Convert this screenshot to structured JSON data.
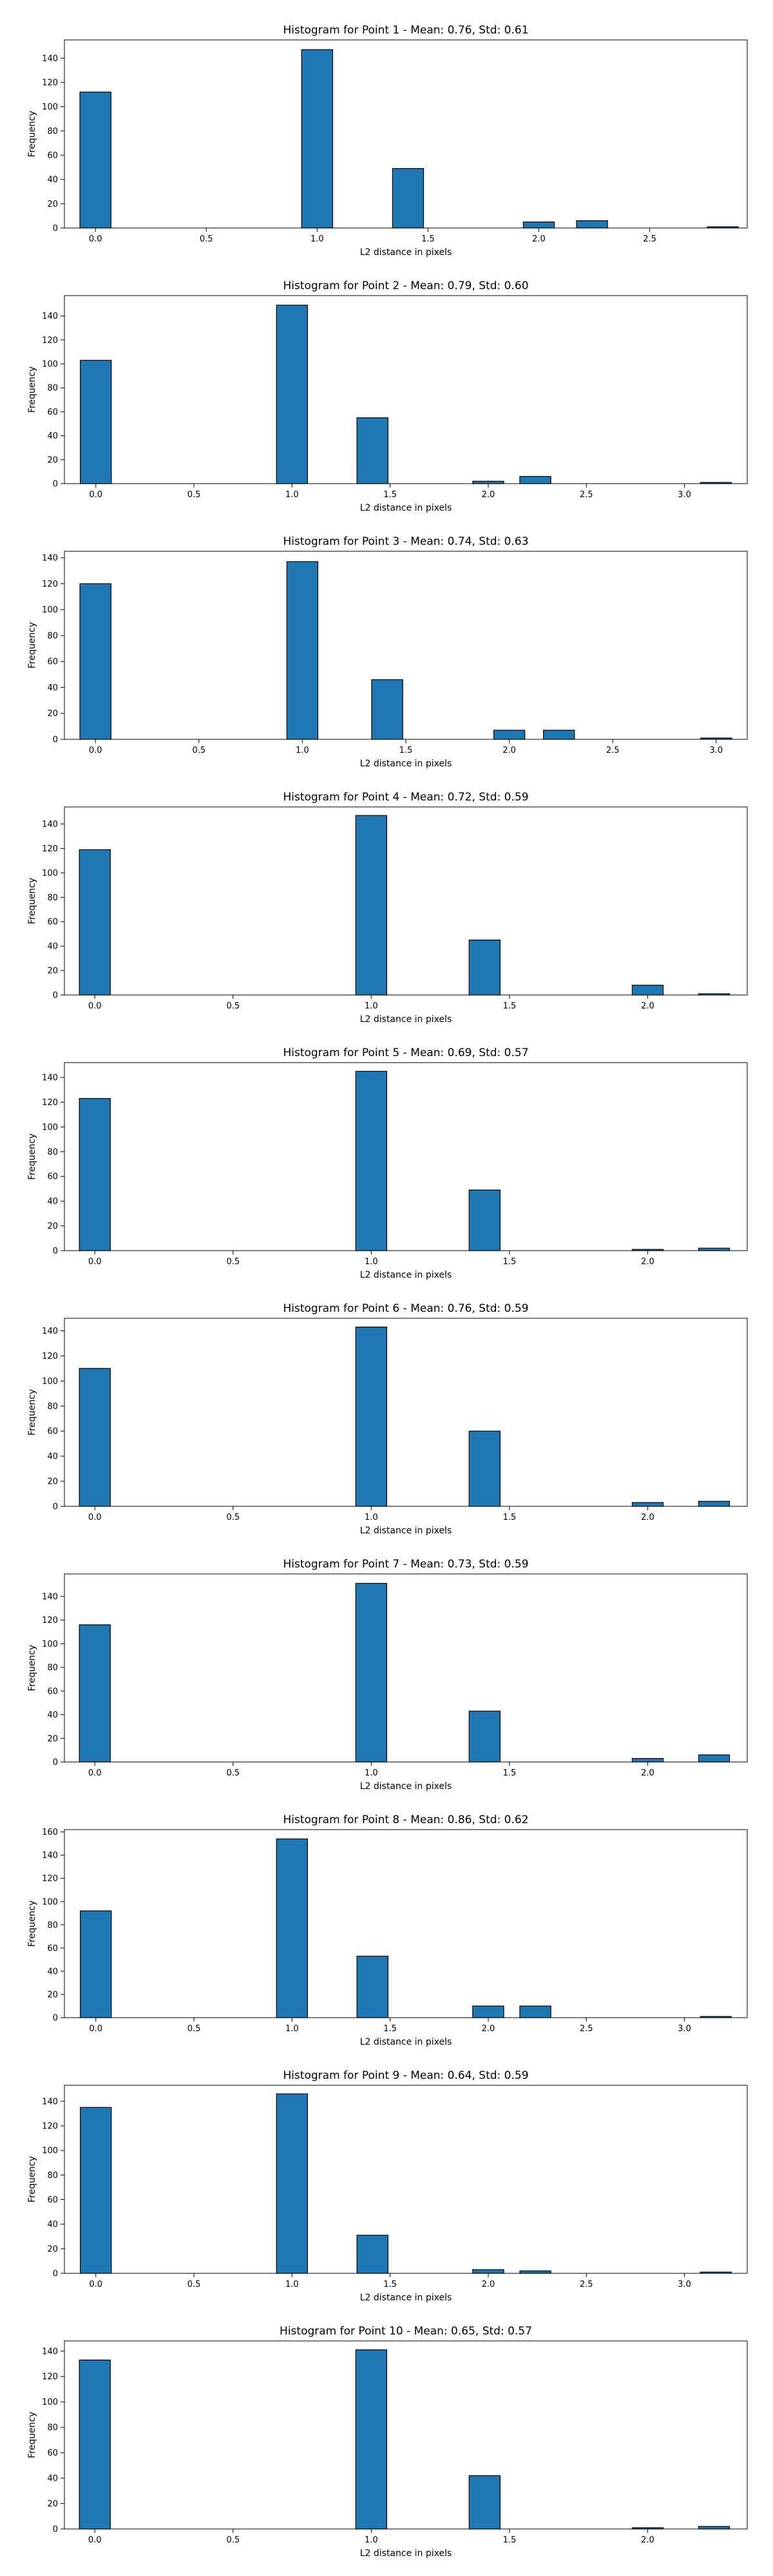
{
  "chart_data": [
    {
      "type": "bar",
      "title": "Histogram for Point 1 - Mean: 0.76, Std: 0.61",
      "xlabel": "L2 distance in pixels",
      "ylabel": "Frequency",
      "xlim": [
        -0.14,
        2.94
      ],
      "ylim": [
        0,
        155
      ],
      "xticks": [
        0.0,
        0.5,
        1.0,
        1.5,
        2.0,
        2.5
      ],
      "xtick_labels": [
        "0.0",
        "0.5",
        "1.0",
        "1.5",
        "2.0",
        "2.5"
      ],
      "yticks": [
        0,
        20,
        40,
        60,
        80,
        100,
        120,
        140
      ],
      "bin_width": 0.14,
      "bars": [
        {
          "x": 0.0,
          "value": 112
        },
        {
          "x": 1.0,
          "value": 147
        },
        {
          "x": 1.41,
          "value": 49
        },
        {
          "x": 2.0,
          "value": 5
        },
        {
          "x": 2.24,
          "value": 6
        },
        {
          "x": 2.83,
          "value": 1
        }
      ],
      "color": "#1f77b4",
      "grid": false
    },
    {
      "type": "bar",
      "title": "Histogram for Point 2 - Mean: 0.79, Std: 0.60",
      "xlabel": "L2 distance in pixels",
      "ylabel": "Frequency",
      "xlim": [
        -0.16,
        3.32
      ],
      "ylim": [
        0,
        157
      ],
      "xticks": [
        0.0,
        0.5,
        1.0,
        1.5,
        2.0,
        2.5,
        3.0
      ],
      "xtick_labels": [
        "0.0",
        "0.5",
        "1.0",
        "1.5",
        "2.0",
        "2.5",
        "3.0"
      ],
      "yticks": [
        0,
        20,
        40,
        60,
        80,
        100,
        120,
        140
      ],
      "bin_width": 0.158,
      "bars": [
        {
          "x": 0.0,
          "value": 103
        },
        {
          "x": 1.0,
          "value": 149
        },
        {
          "x": 1.41,
          "value": 55
        },
        {
          "x": 2.0,
          "value": 2
        },
        {
          "x": 2.24,
          "value": 6
        },
        {
          "x": 3.16,
          "value": 1
        }
      ],
      "color": "#1f77b4",
      "grid": false
    },
    {
      "type": "bar",
      "title": "Histogram for Point 3 - Mean: 0.74, Std: 0.63",
      "xlabel": "L2 distance in pixels",
      "ylabel": "Frequency",
      "xlim": [
        -0.15,
        3.15
      ],
      "ylim": [
        0,
        145
      ],
      "xticks": [
        0.0,
        0.5,
        1.0,
        1.5,
        2.0,
        2.5,
        3.0
      ],
      "xtick_labels": [
        "0.0",
        "0.5",
        "1.0",
        "1.5",
        "2.0",
        "2.5",
        "3.0"
      ],
      "yticks": [
        0,
        20,
        40,
        60,
        80,
        100,
        120,
        140
      ],
      "bin_width": 0.15,
      "bars": [
        {
          "x": 0.0,
          "value": 120
        },
        {
          "x": 1.0,
          "value": 137
        },
        {
          "x": 1.41,
          "value": 46
        },
        {
          "x": 2.0,
          "value": 7
        },
        {
          "x": 2.24,
          "value": 7
        },
        {
          "x": 3.0,
          "value": 1
        }
      ],
      "color": "#1f77b4",
      "grid": false
    },
    {
      "type": "bar",
      "title": "Histogram for Point 4 - Mean: 0.72, Std: 0.59",
      "xlabel": "L2 distance in pixels",
      "ylabel": "Frequency",
      "xlim": [
        -0.11,
        2.36
      ],
      "ylim": [
        0,
        154
      ],
      "xticks": [
        0.0,
        0.5,
        1.0,
        1.5,
        2.0
      ],
      "xtick_labels": [
        "0.0",
        "0.5",
        "1.0",
        "1.5",
        "2.0"
      ],
      "yticks": [
        0,
        20,
        40,
        60,
        80,
        100,
        120,
        140
      ],
      "bin_width": 0.112,
      "bars": [
        {
          "x": 0.0,
          "value": 119
        },
        {
          "x": 1.0,
          "value": 147
        },
        {
          "x": 1.41,
          "value": 45
        },
        {
          "x": 2.0,
          "value": 8
        },
        {
          "x": 2.24,
          "value": 1
        }
      ],
      "color": "#1f77b4",
      "grid": false
    },
    {
      "type": "bar",
      "title": "Histogram for Point 5 - Mean: 0.69, Std: 0.57",
      "xlabel": "L2 distance in pixels",
      "ylabel": "Frequency",
      "xlim": [
        -0.11,
        2.36
      ],
      "ylim": [
        0,
        152
      ],
      "xticks": [
        0.0,
        0.5,
        1.0,
        1.5,
        2.0
      ],
      "xtick_labels": [
        "0.0",
        "0.5",
        "1.0",
        "1.5",
        "2.0"
      ],
      "yticks": [
        0,
        20,
        40,
        60,
        80,
        100,
        120,
        140
      ],
      "bin_width": 0.112,
      "bars": [
        {
          "x": 0.0,
          "value": 123
        },
        {
          "x": 1.0,
          "value": 145
        },
        {
          "x": 1.41,
          "value": 49
        },
        {
          "x": 2.0,
          "value": 1
        },
        {
          "x": 2.24,
          "value": 2
        }
      ],
      "color": "#1f77b4",
      "grid": false
    },
    {
      "type": "bar",
      "title": "Histogram for Point 6 - Mean: 0.76, Std: 0.59",
      "xlabel": "L2 distance in pixels",
      "ylabel": "Frequency",
      "xlim": [
        -0.11,
        2.36
      ],
      "ylim": [
        0,
        150
      ],
      "xticks": [
        0.0,
        0.5,
        1.0,
        1.5,
        2.0
      ],
      "xtick_labels": [
        "0.0",
        "0.5",
        "1.0",
        "1.5",
        "2.0"
      ],
      "yticks": [
        0,
        20,
        40,
        60,
        80,
        100,
        120,
        140
      ],
      "bin_width": 0.112,
      "bars": [
        {
          "x": 0.0,
          "value": 110
        },
        {
          "x": 1.0,
          "value": 143
        },
        {
          "x": 1.41,
          "value": 60
        },
        {
          "x": 2.0,
          "value": 3
        },
        {
          "x": 2.24,
          "value": 4
        }
      ],
      "color": "#1f77b4",
      "grid": false
    },
    {
      "type": "bar",
      "title": "Histogram for Point 7 - Mean: 0.73, Std: 0.59",
      "xlabel": "L2 distance in pixels",
      "ylabel": "Frequency",
      "xlim": [
        -0.11,
        2.36
      ],
      "ylim": [
        0,
        159
      ],
      "xticks": [
        0.0,
        0.5,
        1.0,
        1.5,
        2.0
      ],
      "xtick_labels": [
        "0.0",
        "0.5",
        "1.0",
        "1.5",
        "2.0"
      ],
      "yticks": [
        0,
        20,
        40,
        60,
        80,
        100,
        120,
        140
      ],
      "bin_width": 0.112,
      "bars": [
        {
          "x": 0.0,
          "value": 116
        },
        {
          "x": 1.0,
          "value": 151
        },
        {
          "x": 1.41,
          "value": 43
        },
        {
          "x": 2.0,
          "value": 3
        },
        {
          "x": 2.24,
          "value": 6
        }
      ],
      "color": "#1f77b4",
      "grid": false
    },
    {
      "type": "bar",
      "title": "Histogram for Point 8 - Mean: 0.86, Std: 0.62",
      "xlabel": "L2 distance in pixels",
      "ylabel": "Frequency",
      "xlim": [
        -0.16,
        3.32
      ],
      "ylim": [
        0,
        162
      ],
      "xticks": [
        0.0,
        0.5,
        1.0,
        1.5,
        2.0,
        2.5,
        3.0
      ],
      "xtick_labels": [
        "0.0",
        "0.5",
        "1.0",
        "1.5",
        "2.0",
        "2.5",
        "3.0"
      ],
      "yticks": [
        0,
        20,
        40,
        60,
        80,
        100,
        120,
        140,
        160
      ],
      "bin_width": 0.158,
      "bars": [
        {
          "x": 0.0,
          "value": 92
        },
        {
          "x": 1.0,
          "value": 154
        },
        {
          "x": 1.41,
          "value": 53
        },
        {
          "x": 2.0,
          "value": 10
        },
        {
          "x": 2.24,
          "value": 10
        },
        {
          "x": 3.16,
          "value": 1
        }
      ],
      "color": "#1f77b4",
      "grid": false
    },
    {
      "type": "bar",
      "title": "Histogram for Point 9 - Mean: 0.64, Std: 0.59",
      "xlabel": "L2 distance in pixels",
      "ylabel": "Frequency",
      "xlim": [
        -0.16,
        3.32
      ],
      "ylim": [
        0,
        153
      ],
      "xticks": [
        0.0,
        0.5,
        1.0,
        1.5,
        2.0,
        2.5,
        3.0
      ],
      "xtick_labels": [
        "0.0",
        "0.5",
        "1.0",
        "1.5",
        "2.0",
        "2.5",
        "3.0"
      ],
      "yticks": [
        0,
        20,
        40,
        60,
        80,
        100,
        120,
        140
      ],
      "bin_width": 0.158,
      "bars": [
        {
          "x": 0.0,
          "value": 135
        },
        {
          "x": 1.0,
          "value": 146
        },
        {
          "x": 1.41,
          "value": 31
        },
        {
          "x": 2.0,
          "value": 3
        },
        {
          "x": 2.24,
          "value": 2
        },
        {
          "x": 3.16,
          "value": 1
        }
      ],
      "color": "#1f77b4",
      "grid": false
    },
    {
      "type": "bar",
      "title": "Histogram for Point 10 - Mean: 0.65, Std: 0.57",
      "xlabel": "L2 distance in pixels",
      "ylabel": "Frequency",
      "xlim": [
        -0.11,
        2.36
      ],
      "ylim": [
        0,
        148
      ],
      "xticks": [
        0.0,
        0.5,
        1.0,
        1.5,
        2.0
      ],
      "xtick_labels": [
        "0.0",
        "0.5",
        "1.0",
        "1.5",
        "2.0"
      ],
      "yticks": [
        0,
        20,
        40,
        60,
        80,
        100,
        120,
        140
      ],
      "bin_width": 0.112,
      "bars": [
        {
          "x": 0.0,
          "value": 133
        },
        {
          "x": 1.0,
          "value": 141
        },
        {
          "x": 1.41,
          "value": 42
        },
        {
          "x": 2.0,
          "value": 1
        },
        {
          "x": 2.24,
          "value": 2
        }
      ],
      "color": "#1f77b4",
      "grid": false
    }
  ]
}
